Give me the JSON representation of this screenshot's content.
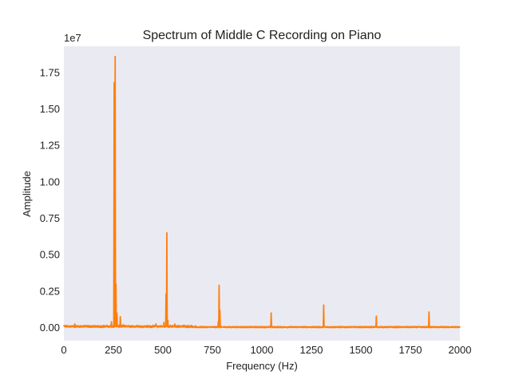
{
  "chart_data": {
    "type": "line",
    "title": "Spectrum of Middle C Recording on Piano",
    "xlabel": "Frequency (Hz)",
    "ylabel": "Amplitude",
    "y_scale_label": "1e7",
    "y_scale_factor": 10000000,
    "xlim": [
      0,
      2000
    ],
    "ylim": [
      -900000,
      19300000
    ],
    "x_ticks": [
      0,
      250,
      500,
      750,
      1000,
      1250,
      1500,
      1750,
      2000
    ],
    "x_tick_labels": [
      "0",
      "250",
      "500",
      "750",
      "1000",
      "1250",
      "1500",
      "1750",
      "2000"
    ],
    "y_ticks": [
      0,
      2500000,
      5000000,
      7500000,
      10000000,
      12500000,
      15000000,
      17500000
    ],
    "y_tick_labels": [
      "0.00",
      "0.25",
      "0.50",
      "0.75",
      "1.00",
      "1.25",
      "1.50",
      "1.75"
    ],
    "grid": false,
    "background_color": "#EAEAF2",
    "series": [
      {
        "color": "#FF7F0E",
        "peaks": [
          {
            "x": 55,
            "y": 250000
          },
          {
            "x": 100,
            "y": 120000
          },
          {
            "x": 200,
            "y": 150000
          },
          {
            "x": 240,
            "y": 400000
          },
          {
            "x": 254,
            "y": 16800000
          },
          {
            "x": 259,
            "y": 18600000
          },
          {
            "x": 263,
            "y": 3000000
          },
          {
            "x": 268,
            "y": 1000000
          },
          {
            "x": 285,
            "y": 750000
          },
          {
            "x": 300,
            "y": 200000
          },
          {
            "x": 370,
            "y": 150000
          },
          {
            "x": 465,
            "y": 250000
          },
          {
            "x": 505,
            "y": 350000
          },
          {
            "x": 516,
            "y": 2300000
          },
          {
            "x": 520,
            "y": 6500000
          },
          {
            "x": 525,
            "y": 500000
          },
          {
            "x": 560,
            "y": 250000
          },
          {
            "x": 665,
            "y": 120000
          },
          {
            "x": 780,
            "y": 400000
          },
          {
            "x": 784,
            "y": 2900000
          },
          {
            "x": 788,
            "y": 1200000
          },
          {
            "x": 1047,
            "y": 1000000
          },
          {
            "x": 1312,
            "y": 1550000
          },
          {
            "x": 1578,
            "y": 780000
          },
          {
            "x": 1844,
            "y": 1070000
          }
        ]
      }
    ]
  }
}
